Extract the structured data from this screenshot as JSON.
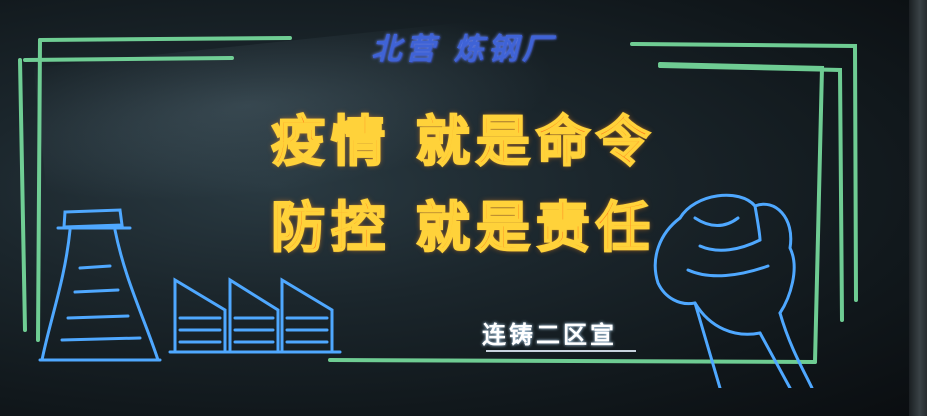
{
  "scene": {
    "header": "北营 炼钢厂",
    "slogan_line_1": "疫情 就是命令",
    "slogan_line_2": "防控 就是责任",
    "signature": "连铸二区宣"
  },
  "drawings": {
    "factory": "cooling-tower-and-sawtooth-roof chalk drawing",
    "fist": "raised-fist chalk drawing"
  },
  "colors": {
    "frame_green": "#79e0a0",
    "header_blue": "#3f63d6",
    "slogan_orange": "#ff7a1a",
    "slogan_outline": "#ffd23a",
    "drawing_blue": "#4fa8ff"
  }
}
